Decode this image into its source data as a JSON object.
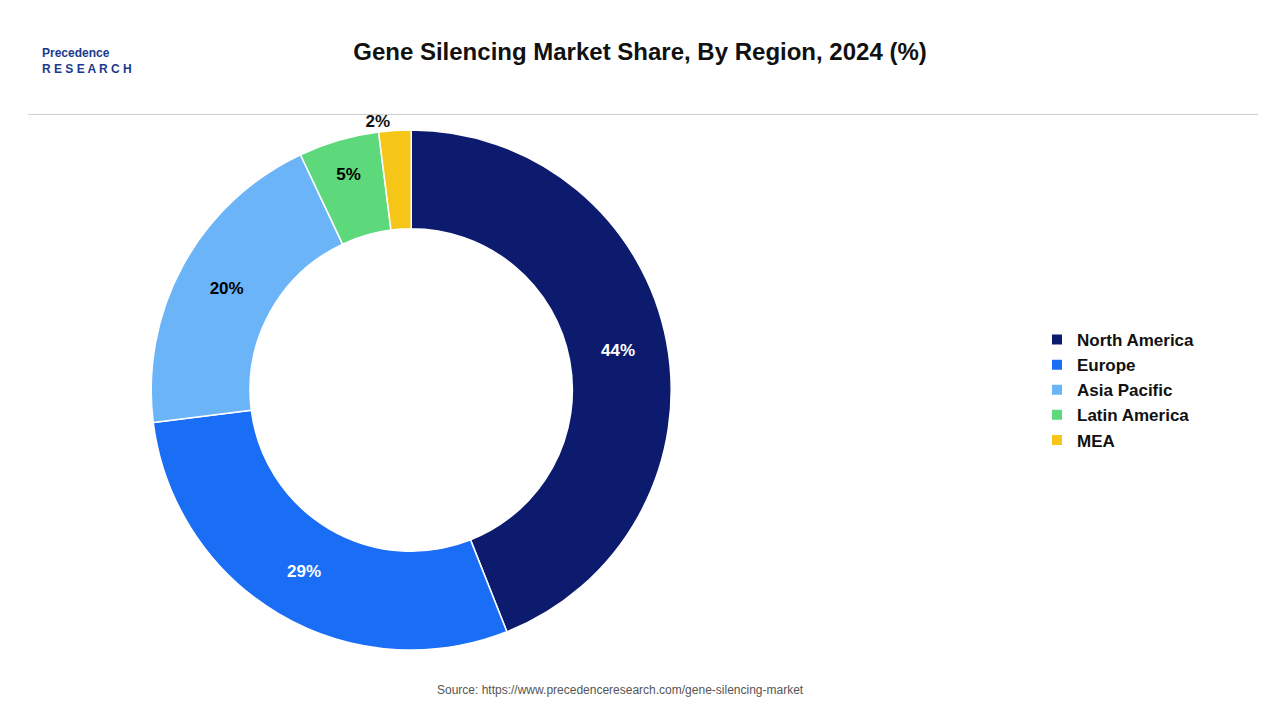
{
  "chart_data": {
    "type": "donut",
    "title": "Gene Silencing Market Share, By Region, 2024 (%)",
    "categories": [
      "North America",
      "Europe",
      "Asia Pacific",
      "Latin America",
      "MEA"
    ],
    "values": [
      44,
      29,
      20,
      5,
      2
    ],
    "value_labels": [
      "44%",
      "29%",
      "20%",
      "5%",
      "2%"
    ],
    "colors": [
      "#0d1b6e",
      "#1a6ef5",
      "#6ab4f7",
      "#5dd87a",
      "#f5c518"
    ],
    "data_labels": true,
    "legend": "right",
    "annotations": [
      "Precedence\nR E S E A R C H",
      "Source: https://www.precedenceresearch.com/gene-silencing-market"
    ]
  }
}
